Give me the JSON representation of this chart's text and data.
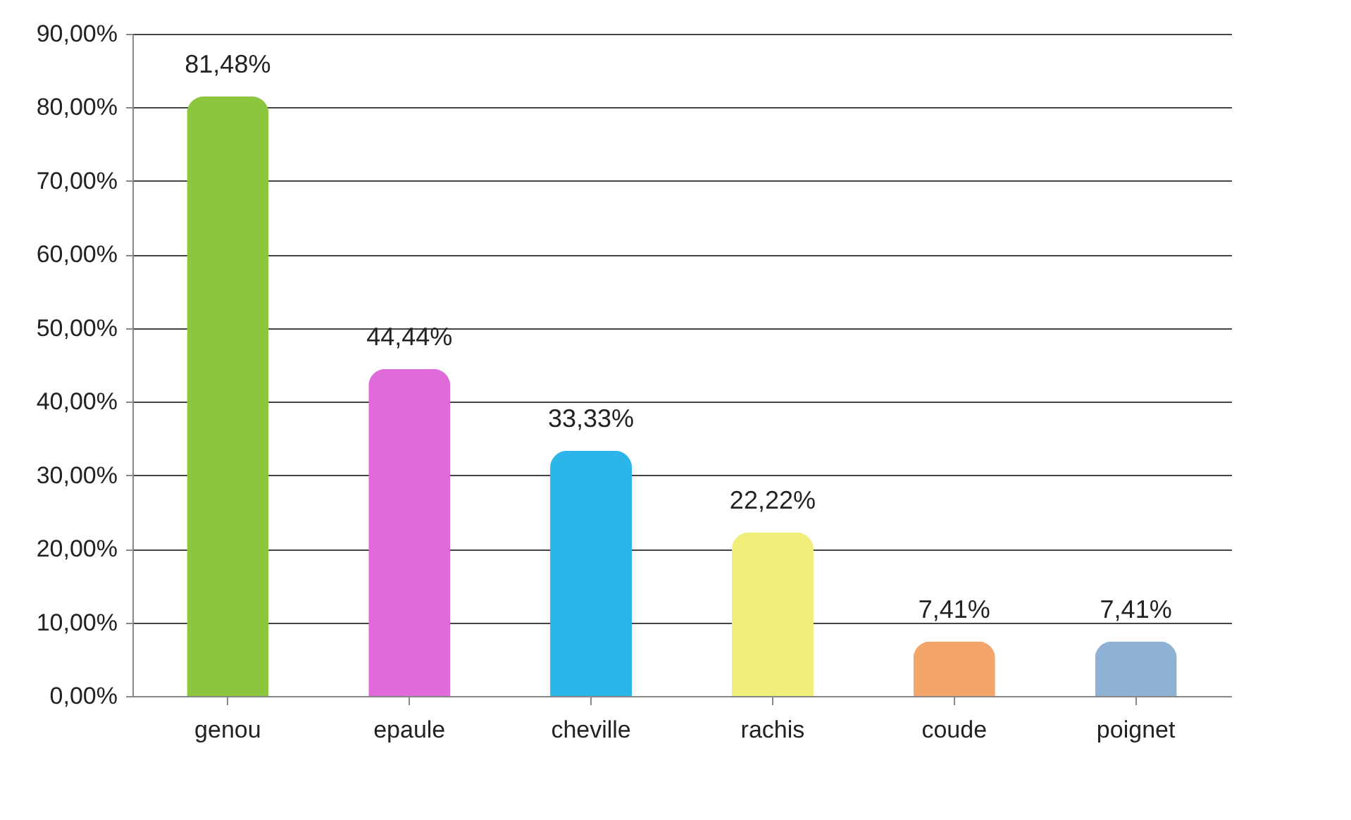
{
  "chart_data": {
    "type": "bar",
    "categories": [
      "genou",
      "epaule",
      "cheville",
      "rachis",
      "coude",
      "poignet"
    ],
    "values": [
      81.48,
      44.44,
      33.33,
      22.22,
      7.41,
      7.41
    ],
    "colors": [
      "#8cc63e",
      "#e06ad8",
      "#2bb5e8",
      "#f2ee7a",
      "#f4a66a",
      "#8fb2d4"
    ],
    "value_labels": [
      "81,48%",
      "44,44%",
      "33,33%",
      "22,22%",
      "7,41%",
      "7,41%"
    ],
    "ylim": [
      0,
      90
    ],
    "yticks": [
      {
        "value": 0,
        "label": "0,00%"
      },
      {
        "value": 10,
        "label": "10,00%"
      },
      {
        "value": 20,
        "label": "20,00%"
      },
      {
        "value": 30,
        "label": "30,00%"
      },
      {
        "value": 40,
        "label": "40,00%"
      },
      {
        "value": 50,
        "label": "50,00%"
      },
      {
        "value": 60,
        "label": "60,00%"
      },
      {
        "value": 70,
        "label": "70,00%"
      },
      {
        "value": 80,
        "label": "80,00%"
      },
      {
        "value": 90,
        "label": "90,00%"
      }
    ],
    "grid": "y"
  }
}
